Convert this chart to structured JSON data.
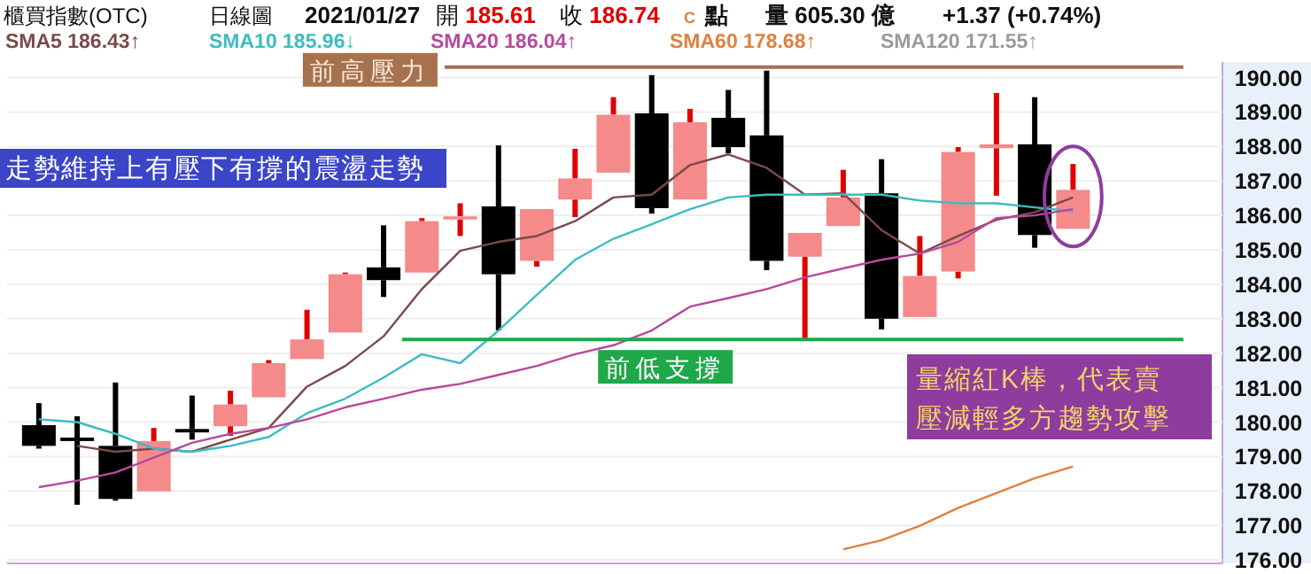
{
  "chart_data": {
    "type": "candlestick",
    "title": "櫃買指數(OTC)",
    "subtitle": "日線圖",
    "annotations": [
      "2021/01/27",
      "開 185.61",
      "收 186.74",
      "C",
      "點",
      "量 605.30 億",
      "+1.37 (+0.74%)",
      "走勢維持上有壓下有撐的震盪走勢",
      "量縮紅K棒，代表賣壓減輕多方趨勢攻擊",
      "SMA120 171.55↑"
    ],
    "categories": [
      null,
      null,
      null,
      null,
      null,
      null,
      null,
      null,
      null,
      null,
      null,
      null,
      null,
      null,
      null,
      null,
      null,
      null,
      null,
      null,
      null,
      null,
      null,
      null,
      null,
      null,
      null,
      null
    ],
    "ohlc": [
      [
        179.91,
        180.55,
        179.23,
        179.31
      ],
      [
        179.55,
        180.17,
        177.6,
        179.45
      ],
      [
        179.31,
        181.15,
        177.72,
        177.77
      ],
      [
        177.99,
        179.83,
        177.99,
        179.45
      ],
      [
        179.8,
        180.77,
        179.49,
        179.7
      ],
      [
        179.88,
        180.91,
        179.6,
        180.51
      ],
      [
        180.72,
        181.8,
        180.72,
        181.71
      ],
      [
        181.83,
        183.26,
        181.83,
        182.4
      ],
      [
        182.6,
        184.34,
        182.6,
        184.29
      ],
      [
        184.49,
        185.71,
        183.63,
        184.12
      ],
      [
        184.34,
        185.92,
        184.34,
        185.83
      ],
      [
        185.88,
        186.35,
        185.4,
        185.97
      ],
      [
        186.26,
        188.03,
        182.66,
        184.29
      ],
      [
        184.68,
        186.18,
        184.51,
        186.18
      ],
      [
        186.46,
        187.93,
        185.95,
        187.07
      ],
      [
        187.24,
        189.43,
        187.24,
        188.92
      ],
      [
        188.96,
        190.07,
        186.05,
        186.21
      ],
      [
        186.46,
        189.09,
        186.46,
        188.7
      ],
      [
        188.83,
        189.64,
        187.8,
        187.98
      ],
      [
        188.32,
        190.2,
        184.41,
        184.68
      ],
      [
        184.8,
        185.49,
        182.4,
        185.49
      ],
      [
        185.69,
        187.32,
        185.69,
        186.52
      ],
      [
        186.64,
        187.63,
        182.69,
        183.0
      ],
      [
        183.05,
        185.4,
        183.05,
        184.24
      ],
      [
        184.37,
        187.98,
        184.17,
        187.84
      ],
      [
        187.95,
        189.55,
        186.57,
        188.06
      ],
      [
        188.06,
        189.43,
        185.06,
        185.43
      ],
      [
        185.61,
        187.49,
        185.61,
        186.74
      ]
    ],
    "series": [
      {
        "name": "SMA5 186.43↑",
        "type": "line",
        "color": "#7a4a4a",
        "values": [
          null,
          179.31,
          179.14,
          179.23,
          179.14,
          179.49,
          179.83,
          181.03,
          181.63,
          182.49,
          183.86,
          184.97,
          185.23,
          185.4,
          185.83,
          186.52,
          186.6,
          187.46,
          187.77,
          187.38,
          186.6,
          186.64,
          185.57,
          184.89,
          185.4,
          185.87,
          186.09,
          186.52
        ]
      },
      {
        "name": "SMA10 185.96↓",
        "type": "line",
        "color": "#3cbcc0",
        "values": [
          180.08,
          180.0,
          179.66,
          179.23,
          179.14,
          179.31,
          179.57,
          180.26,
          180.68,
          181.29,
          181.97,
          181.71,
          182.66,
          183.69,
          184.71,
          185.32,
          185.74,
          186.18,
          186.52,
          186.6,
          186.6,
          186.6,
          186.6,
          186.43,
          186.35,
          186.35,
          186.23,
          186.12
        ]
      },
      {
        "name": "SMA20 186.04↑",
        "type": "line",
        "color": "#b8489e",
        "values": [
          178.11,
          178.3,
          178.54,
          178.97,
          179.4,
          179.66,
          179.83,
          180.08,
          180.43,
          180.68,
          180.94,
          181.11,
          181.37,
          181.63,
          181.97,
          182.23,
          182.66,
          183.35,
          183.6,
          183.86,
          184.2,
          184.46,
          184.71,
          184.89,
          185.23,
          185.92,
          186.0,
          186.18
        ]
      },
      {
        "name": "SMA60 178.68↑",
        "type": "line",
        "color": "#e08040",
        "values": [
          null,
          null,
          null,
          null,
          null,
          null,
          null,
          null,
          null,
          null,
          null,
          null,
          null,
          null,
          null,
          null,
          null,
          null,
          null,
          null,
          null,
          176.31,
          176.57,
          176.99,
          177.51,
          177.94,
          178.37,
          178.71
        ]
      }
    ],
    "ylim": [
      175.9,
      190.45
    ],
    "yticks": [
      {
        "value": 176,
        "label": "176.00"
      },
      {
        "value": 177,
        "label": "177.00"
      },
      {
        "value": 178,
        "label": "178.00"
      },
      {
        "value": 179,
        "label": "179.00"
      },
      {
        "value": 180,
        "label": "180.00"
      },
      {
        "value": 181,
        "label": "181.00"
      },
      {
        "value": 182,
        "label": "182.00"
      },
      {
        "value": 183,
        "label": "183.00"
      },
      {
        "value": 184,
        "label": "184.00"
      },
      {
        "value": 185,
        "label": "185.00"
      },
      {
        "value": 186,
        "label": "186.00"
      },
      {
        "value": 187,
        "label": "187.00"
      },
      {
        "value": 188,
        "label": "188.00"
      },
      {
        "value": 189,
        "label": "189.00"
      },
      {
        "value": 190,
        "label": "190.00"
      }
    ],
    "ref_lines": [
      {
        "axis": "y",
        "value": 190.3,
        "label": "前高壓力",
        "color": "#a8714e"
      },
      {
        "axis": "y",
        "value": 182.4,
        "label": "前低支撐",
        "color": "#1fa84a"
      }
    ],
    "grid": "y",
    "legend": "top"
  }
}
